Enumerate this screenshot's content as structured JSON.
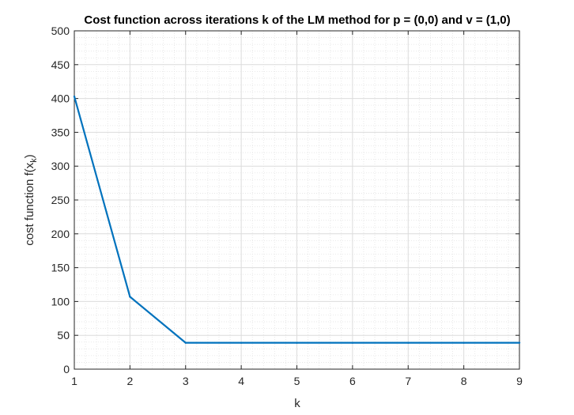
{
  "chart_data": {
    "type": "line",
    "title": "Cost function across iterations k of the LM method for p = (0,0) and v = (1,0)",
    "xlabel": "k",
    "ylabel_main": "cost function f(x",
    "ylabel_sub": "k",
    "ylabel_close": ")",
    "x": [
      1,
      2,
      3,
      4,
      5,
      6,
      7,
      8,
      9
    ],
    "series": [
      {
        "values": [
          403,
          107,
          39,
          39,
          39,
          39,
          39,
          39,
          39
        ],
        "color": "#0072BD"
      }
    ],
    "xlim": [
      1,
      9
    ],
    "ylim": [
      0,
      500
    ],
    "xticks": [
      "1",
      "2",
      "3",
      "4",
      "5",
      "6",
      "7",
      "8",
      "9"
    ],
    "yticks": [
      "0",
      "50",
      "100",
      "150",
      "200",
      "250",
      "300",
      "350",
      "400",
      "450",
      "500"
    ],
    "grid": true,
    "minor_grid": true
  }
}
